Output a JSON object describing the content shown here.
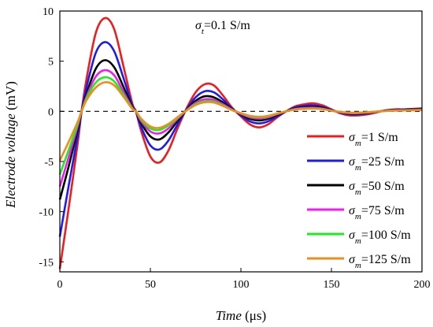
{
  "chart_data": {
    "type": "line",
    "xlabel": {
      "var": "Time",
      "unit": " (μs)"
    },
    "ylabel": {
      "var": "Electrode voltage",
      "unit": " (mV)"
    },
    "xlim": [
      0,
      200
    ],
    "ylim": [
      -16,
      10
    ],
    "xticks": [
      0,
      50,
      100,
      150,
      200
    ],
    "yticks": [
      -15,
      -10,
      -5,
      0,
      5,
      10
    ],
    "grid": false,
    "legend_position": "right",
    "zero_line": {
      "y": 0,
      "style": "dashed"
    },
    "annotation": {
      "sym": "σ",
      "sub": "t",
      "rest": "=0.1 S/m"
    },
    "series": [
      {
        "name": "σm=1 S/m",
        "label": {
          "sym": "σ",
          "sub": "m",
          "rest": "=1 S/m"
        },
        "color": "#ee1c1c",
        "x": [
          0,
          5,
          10,
          12,
          15,
          20,
          25,
          30,
          35,
          40,
          42,
          45,
          50,
          55,
          60,
          65,
          70,
          75,
          80,
          85,
          90,
          95,
          100,
          105,
          110,
          115,
          120,
          125,
          130,
          135,
          140,
          145,
          150,
          155,
          160,
          165,
          170,
          175,
          180,
          185,
          190,
          195,
          200
        ],
        "y": [
          -15.7,
          -9.5,
          -3,
          0,
          3.5,
          7.9,
          9.3,
          8.2,
          4.6,
          0.8,
          0,
          -2,
          -4.5,
          -5.1,
          -3.9,
          -1.7,
          0.3,
          1.9,
          2.7,
          2.6,
          1.6,
          0.4,
          -0.5,
          -1.3,
          -1.6,
          -1.3,
          -0.6,
          0,
          0.5,
          0.7,
          0.8,
          0.6,
          0.2,
          -0.2,
          -0.4,
          -0.4,
          -0.3,
          -0.1,
          0.1,
          0.2,
          0.2,
          0.25,
          0.3
        ]
      },
      {
        "name": "σm=25 S/m",
        "label": {
          "sym": "σ",
          "sub": "m",
          "rest": "=25 S/m"
        },
        "color": "#1c1cee",
        "x": [
          0,
          5,
          10,
          12,
          15,
          20,
          25,
          30,
          35,
          40,
          42,
          45,
          50,
          55,
          60,
          65,
          70,
          75,
          80,
          85,
          90,
          95,
          100,
          105,
          110,
          115,
          120,
          125,
          130,
          135,
          140,
          145,
          150,
          155,
          160,
          165,
          170,
          175,
          180,
          185,
          190,
          195,
          200
        ],
        "y": [
          -12.5,
          -7.3,
          -2.3,
          0,
          2.6,
          5.9,
          6.9,
          6,
          3.4,
          0.6,
          0,
          -1.6,
          -3.4,
          -3.8,
          -2.9,
          -1.3,
          0.2,
          1.4,
          2,
          1.9,
          1.2,
          0.3,
          -0.4,
          -1,
          -1.2,
          -1,
          -0.5,
          0,
          0.4,
          0.55,
          0.6,
          0.45,
          0.15,
          -0.15,
          -0.3,
          -0.3,
          -0.2,
          -0.05,
          0.1,
          0.15,
          0.2,
          0.22,
          0.25
        ]
      },
      {
        "name": "σm=50 S/m",
        "label": {
          "sym": "σ",
          "sub": "m",
          "rest": "=50 S/m"
        },
        "color": "#000000",
        "x": [
          0,
          5,
          10,
          12,
          15,
          20,
          25,
          30,
          35,
          40,
          42,
          45,
          50,
          55,
          60,
          65,
          70,
          75,
          80,
          85,
          90,
          95,
          100,
          105,
          110,
          115,
          120,
          125,
          130,
          135,
          140,
          145,
          150,
          155,
          160,
          165,
          170,
          175,
          180,
          185,
          190,
          195,
          200
        ],
        "y": [
          -8.8,
          -5.4,
          -1.7,
          0,
          1.9,
          4.3,
          5.1,
          4.4,
          2.5,
          0.45,
          0,
          -1.2,
          -2.5,
          -2.8,
          -2.1,
          -0.95,
          0.15,
          1.05,
          1.5,
          1.4,
          0.9,
          0.22,
          -0.3,
          -0.75,
          -0.9,
          -0.75,
          -0.35,
          0,
          0.3,
          0.4,
          0.45,
          0.35,
          0.1,
          -0.1,
          -0.22,
          -0.22,
          -0.15,
          -0.04,
          0.07,
          0.12,
          0.15,
          0.18,
          0.2
        ]
      },
      {
        "name": "σm=75 S/m",
        "label": {
          "sym": "σ",
          "sub": "m",
          "rest": "=75 S/m"
        },
        "color": "#ee1cee",
        "x": [
          0,
          5,
          10,
          12,
          15,
          20,
          25,
          30,
          35,
          40,
          42,
          45,
          50,
          55,
          60,
          65,
          70,
          75,
          80,
          85,
          90,
          95,
          100,
          105,
          110,
          115,
          120,
          125,
          130,
          135,
          140,
          145,
          150,
          155,
          160,
          165,
          170,
          175,
          180,
          185,
          190,
          195,
          200
        ],
        "y": [
          -7.5,
          -4.5,
          -1.4,
          0,
          1.6,
          3.5,
          4.1,
          3.6,
          2,
          0.35,
          0,
          -1,
          -2,
          -2.2,
          -1.7,
          -0.75,
          0.12,
          0.85,
          1.2,
          1.15,
          0.72,
          0.18,
          -0.25,
          -0.6,
          -0.72,
          -0.6,
          -0.28,
          0,
          0.25,
          0.33,
          0.36,
          0.28,
          0.08,
          -0.08,
          -0.18,
          -0.18,
          -0.12,
          -0.03,
          0.05,
          0.1,
          0.12,
          0.14,
          0.16
        ]
      },
      {
        "name": "σm=100 S/m",
        "label": {
          "sym": "σ",
          "sub": "m",
          "rest": "=100 S/m"
        },
        "color": "#1cee1c",
        "x": [
          0,
          5,
          10,
          12,
          15,
          20,
          25,
          30,
          35,
          40,
          42,
          45,
          50,
          55,
          60,
          65,
          70,
          75,
          80,
          85,
          90,
          95,
          100,
          105,
          110,
          115,
          120,
          125,
          130,
          135,
          140,
          145,
          150,
          155,
          160,
          165,
          170,
          175,
          180,
          185,
          190,
          195,
          200
        ],
        "y": [
          -6.3,
          -3.8,
          -1.2,
          0,
          1.4,
          2.9,
          3.4,
          3,
          1.7,
          0.3,
          0,
          -0.85,
          -1.7,
          -1.85,
          -1.4,
          -0.65,
          0.1,
          0.72,
          1,
          0.98,
          0.6,
          0.15,
          -0.2,
          -0.5,
          -0.6,
          -0.5,
          -0.24,
          0,
          0.2,
          0.28,
          0.3,
          0.24,
          0.07,
          -0.07,
          -0.15,
          -0.15,
          -0.1,
          -0.02,
          0.04,
          0.08,
          0.1,
          0.12,
          0.14
        ]
      },
      {
        "name": "σm=125 S/m",
        "label": {
          "sym": "σ",
          "sub": "m",
          "rest": "=125 S/m"
        },
        "color": "#ee8c1c",
        "x": [
          0,
          5,
          10,
          12,
          15,
          20,
          25,
          30,
          35,
          40,
          42,
          45,
          50,
          55,
          60,
          65,
          70,
          75,
          80,
          85,
          90,
          95,
          100,
          105,
          110,
          115,
          120,
          125,
          130,
          135,
          140,
          145,
          150,
          155,
          160,
          165,
          170,
          175,
          180,
          185,
          190,
          195,
          200
        ],
        "y": [
          -4.9,
          -3,
          -1,
          0,
          1.2,
          2.4,
          2.9,
          2.6,
          1.5,
          0.25,
          0,
          -0.75,
          -1.5,
          -1.65,
          -1.25,
          -0.58,
          0.08,
          0.64,
          0.9,
          0.88,
          0.55,
          0.13,
          -0.18,
          -0.45,
          -0.55,
          -0.45,
          -0.22,
          0,
          0.18,
          0.25,
          0.28,
          0.22,
          0.06,
          -0.06,
          -0.13,
          -0.13,
          -0.09,
          -0.02,
          0.04,
          0.07,
          0.09,
          0.11,
          0.13
        ]
      }
    ]
  }
}
